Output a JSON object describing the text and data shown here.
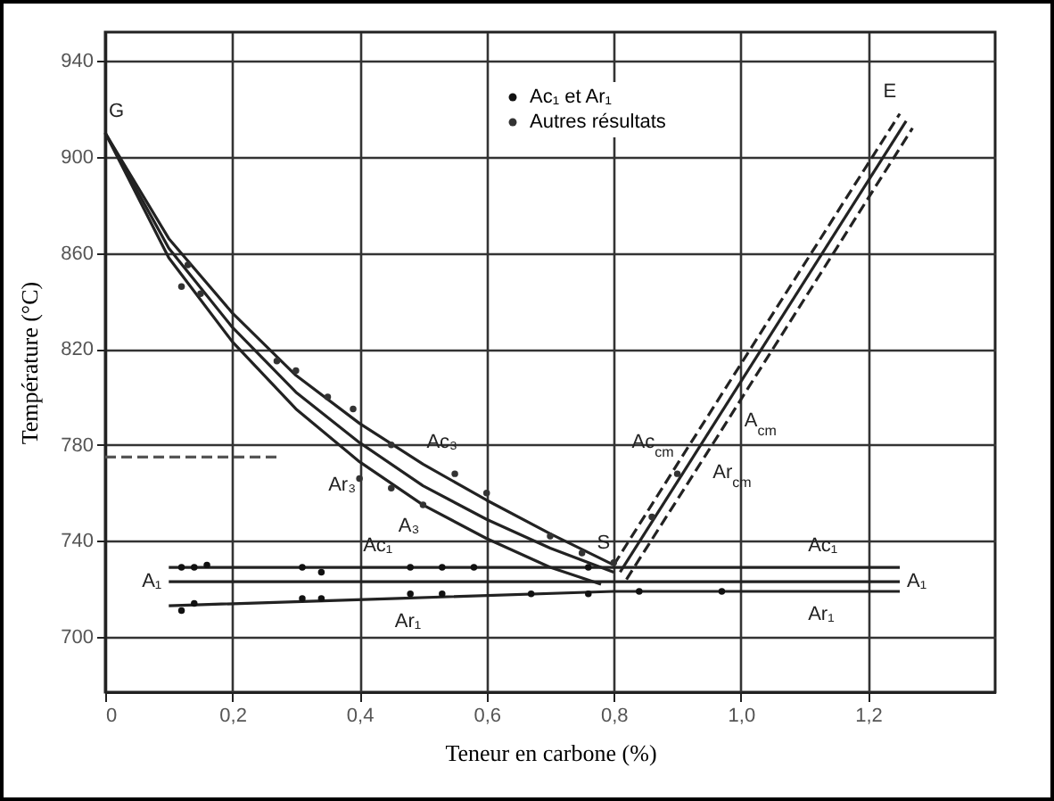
{
  "chart_data": {
    "type": "line",
    "xlabel": "Teneur en carbone (%)",
    "ylabel": "Température (°C)",
    "xlim": [
      0,
      1.4
    ],
    "ylim": [
      677,
      952
    ],
    "xticks": [
      0,
      {
        "value": 0.2,
        "label": "0,2"
      },
      {
        "value": 0.4,
        "label": "0,4"
      },
      {
        "value": 0.6,
        "label": "0,6"
      },
      {
        "value": 0.8,
        "label": "0,8"
      },
      {
        "value": 1.0,
        "label": "1,0"
      },
      {
        "value": 1.2,
        "label": "1,2"
      }
    ],
    "yticks": [
      700,
      740,
      780,
      820,
      860,
      900,
      940
    ],
    "grid": true,
    "legend": "top",
    "series": [
      {
        "color": "#222222",
        "line_style": "solid",
        "x": [
          0,
          0.1,
          0.2,
          0.3,
          0.4,
          0.5,
          0.6,
          0.7,
          0.8
        ],
        "values": [
          910,
          866,
          835,
          809,
          789,
          772,
          757,
          743,
          730
        ]
      },
      {
        "color": "#222222",
        "line_style": "solid",
        "x": [
          0,
          0.1,
          0.2,
          0.3,
          0.4,
          0.5,
          0.6,
          0.7,
          0.8
        ],
        "values": [
          910,
          862,
          829,
          802,
          781,
          763,
          749,
          737,
          727
        ]
      },
      {
        "color": "#222222",
        "line_style": "solid",
        "x": [
          0,
          0.1,
          0.2,
          0.3,
          0.4,
          0.5,
          0.6,
          0.7,
          0.78
        ],
        "values": [
          910,
          858,
          823,
          795,
          773,
          755,
          741,
          729,
          722
        ]
      },
      {
        "color": "#222222",
        "line_style": "dashed",
        "x": [
          0.8,
          0.9,
          1.25
        ],
        "values": [
          730,
          772,
          918
        ]
      },
      {
        "color": "#222222",
        "line_style": "solid",
        "x": [
          0.81,
          1.26
        ],
        "values": [
          727,
          915
        ]
      },
      {
        "color": "#222222",
        "line_style": "dashed",
        "x": [
          0.82,
          0.95,
          1.27
        ],
        "values": [
          724,
          778,
          912
        ]
      },
      {
        "color": "#222222",
        "line_style": "solid",
        "x": [
          0.1,
          1.25
        ],
        "values": [
          729,
          729
        ]
      },
      {
        "color": "#222222",
        "line_style": "solid",
        "x": [
          0.1,
          1.25
        ],
        "values": [
          723,
          723
        ]
      },
      {
        "color": "#222222",
        "line_style": "solid",
        "x": [
          0.1,
          0.45,
          0.8,
          1.25
        ],
        "values": [
          713,
          716,
          719,
          719
        ]
      },
      {
        "color": "#555555",
        "line_style": "dashed",
        "x": [
          0,
          0.27
        ],
        "values": [
          775,
          775
        ]
      },
      {
        "type": "scatter",
        "marker": "circle",
        "name": "Ac₁ et Ar₁",
        "color": "#111111",
        "x": [
          0.12,
          0.14,
          0.16,
          0.31,
          0.34,
          0.48,
          0.53,
          0.58,
          0.76,
          0.12,
          0.14,
          0.31,
          0.34,
          0.48,
          0.53,
          0.67,
          0.76,
          0.84,
          0.97
        ],
        "values": [
          729,
          729,
          730,
          729,
          727,
          729,
          729,
          729,
          729,
          711,
          714,
          716,
          716,
          718,
          718,
          718,
          718,
          719,
          719
        ]
      },
      {
        "type": "scatter",
        "marker": "circle",
        "name": "Autres résultats",
        "color": "#333333",
        "x": [
          0.13,
          0.12,
          0.15,
          0.27,
          0.3,
          0.35,
          0.39,
          0.45,
          0.55,
          0.6,
          0.4,
          0.45,
          0.5,
          0.7,
          0.75,
          0.8,
          0.86,
          0.9
        ],
        "values": [
          855,
          846,
          843,
          815,
          811,
          800,
          795,
          780,
          768,
          760,
          766,
          762,
          755,
          742,
          735,
          731,
          750,
          768
        ]
      }
    ],
    "annotations": [
      {
        "text": "G",
        "x": 0,
        "y": 910
      },
      {
        "text": "E",
        "x": 1.25,
        "y": 918
      },
      {
        "text": "S",
        "x": 0.8,
        "y": 730
      },
      {
        "text": "Ar₃",
        "x": 0.4,
        "y": 773
      },
      {
        "text": "A₃",
        "x": 0.5,
        "y": 763
      },
      {
        "text": "Ac₃",
        "x": 0.5,
        "y": 772
      },
      {
        "text": "Ac₁",
        "x": 0.4,
        "y": 729
      },
      {
        "text": "A₁",
        "x": 0.1,
        "y": 723
      },
      {
        "text": "Ar₁",
        "x": 0.45,
        "y": 716
      },
      {
        "text": "Ac₁",
        "x": 1.1,
        "y": 729
      },
      {
        "text": "A₁",
        "x": 1.25,
        "y": 723
      },
      {
        "text": "Ar₁",
        "x": 1.1,
        "y": 719
      },
      {
        "text": "Ac$_{cm}$",
        "x": 0.9,
        "y": 772
      },
      {
        "text": "Ar$_{cm}$",
        "x": 0.95,
        "y": 778
      },
      {
        "text": "A$_{cm}$",
        "x": 1.0,
        "y": 806
      }
    ]
  }
}
